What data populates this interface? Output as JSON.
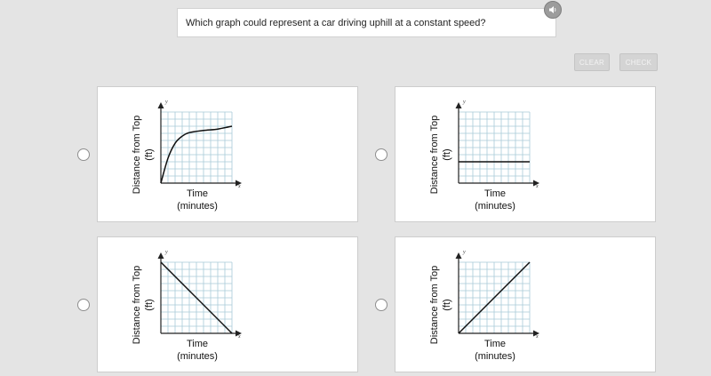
{
  "question": {
    "text": "Which graph could represent a car driving uphill at a constant speed?"
  },
  "buttons": {
    "clear_label": "CLEAR",
    "check_label": "CHECK"
  },
  "icons": {
    "audio": "speaker-icon"
  },
  "colors": {
    "grid": "#a9cad8",
    "curve": "#111111",
    "button_disabled": "#d4d4d4"
  },
  "options": [
    {
      "ylabel_line1": "Distance from Top",
      "ylabel_line2": "(ft)",
      "xlabel_line1": "Time",
      "xlabel_line2": "(minutes)",
      "x_axis_letter": "x",
      "y_axis_letter": "y",
      "shape": "increasing-then-leveling-curve",
      "chart_data": {
        "type": "line",
        "x": [
          0,
          1,
          2,
          3,
          4,
          6,
          8,
          10
        ],
        "y": [
          0,
          3.5,
          5.6,
          6.6,
          7.1,
          7.4,
          7.6,
          8.0
        ],
        "xlim": [
          0,
          10
        ],
        "ylim": [
          0,
          10
        ],
        "grid": true
      }
    },
    {
      "ylabel_line1": "Distance from Top",
      "ylabel_line2": "(ft)",
      "xlabel_line1": "Time",
      "xlabel_line2": "(minutes)",
      "x_axis_letter": "x",
      "y_axis_letter": "y",
      "shape": "horizontal-line",
      "chart_data": {
        "type": "line",
        "x": [
          0,
          10
        ],
        "y": [
          3,
          3
        ],
        "xlim": [
          0,
          10
        ],
        "ylim": [
          0,
          10
        ],
        "grid": true
      }
    },
    {
      "ylabel_line1": "Distance from Top",
      "ylabel_line2": "(ft)",
      "xlabel_line1": "Time",
      "xlabel_line2": "(minutes)",
      "x_axis_letter": "x",
      "y_axis_letter": "y",
      "shape": "decreasing-line",
      "chart_data": {
        "type": "line",
        "x": [
          0,
          10
        ],
        "y": [
          10,
          0
        ],
        "xlim": [
          0,
          10
        ],
        "ylim": [
          0,
          10
        ],
        "grid": true
      }
    },
    {
      "ylabel_line1": "Distance from Top",
      "ylabel_line2": "(ft)",
      "xlabel_line1": "Time",
      "xlabel_line2": "(minutes)",
      "x_axis_letter": "x",
      "y_axis_letter": "y",
      "shape": "increasing-line",
      "chart_data": {
        "type": "line",
        "x": [
          0,
          10
        ],
        "y": [
          0,
          10
        ],
        "xlim": [
          0,
          10
        ],
        "ylim": [
          0,
          10
        ],
        "grid": true
      }
    }
  ]
}
